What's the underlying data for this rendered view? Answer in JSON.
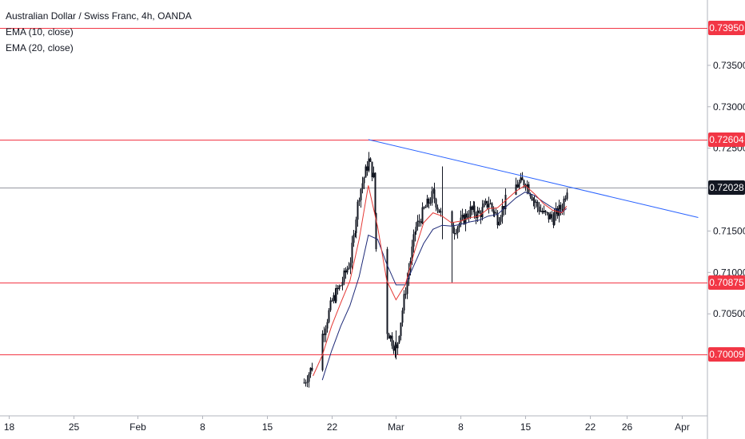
{
  "legend": {
    "title": "Australian Dollar / Swiss Franc, 4h, OANDA",
    "ema10": "EMA (10, close)",
    "ema20": "EMA (20, close)"
  },
  "colors": {
    "level_line": "#f23645",
    "trend_line": "#2962ff",
    "ema10": "#e53935",
    "ema20": "#1e2a78",
    "candle": "#131722",
    "current_tag": "#131722",
    "current_line": "#9598a1"
  },
  "chart_data": {
    "type": "candlestick",
    "ylim": [
      0.69625,
      0.74125
    ],
    "y_ticks": [
      "0.73500",
      "0.73000",
      "0.72500",
      "0.71500",
      "0.71000",
      "0.70500"
    ],
    "x_ticks": [
      "18",
      "25",
      "Feb",
      "8",
      "15",
      "22",
      "Mar",
      "8",
      "15",
      "22",
      "26",
      "Apr"
    ],
    "horizontal_levels": [
      {
        "label": "0.73950",
        "value": 0.7395
      },
      {
        "label": "0.72604",
        "value": 0.72604
      },
      {
        "label": "0.70875",
        "value": 0.70875
      },
      {
        "label": "0.70009",
        "value": 0.70009
      }
    ],
    "current_price": {
      "label": "0.72028",
      "value": 0.72028
    },
    "trendline": {
      "start": {
        "date": "2021-02-26",
        "value": 0.72604
      },
      "end": {
        "date": "2021-03-31",
        "value": 0.71649
      }
    },
    "close_path": [
      [
        "2021-02-19",
        0.6967
      ],
      [
        "2021-02-20",
        0.699
      ],
      [
        "2021-02-21",
        0.7025
      ],
      [
        "2021-02-22",
        0.7065
      ],
      [
        "2021-02-23",
        0.7085
      ],
      [
        "2021-02-24",
        0.7115
      ],
      [
        "2021-02-25",
        0.7195
      ],
      [
        "2021-02-26",
        0.7235
      ],
      [
        "2021-02-26T12",
        0.7215
      ],
      [
        "2021-02-27",
        0.7085
      ],
      [
        "2021-02-28",
        0.703
      ],
      [
        "2021-03-01",
        0.7005
      ],
      [
        "2021-03-02",
        0.708
      ],
      [
        "2021-03-03",
        0.715
      ],
      [
        "2021-03-04",
        0.7175
      ],
      [
        "2021-03-05",
        0.7195
      ],
      [
        "2021-03-06",
        0.7165
      ],
      [
        "2021-03-07",
        0.715
      ],
      [
        "2021-03-08",
        0.716
      ],
      [
        "2021-03-09",
        0.7175
      ],
      [
        "2021-03-10",
        0.717
      ],
      [
        "2021-03-11",
        0.7185
      ],
      [
        "2021-03-12",
        0.7165
      ],
      [
        "2021-03-13",
        0.719
      ],
      [
        "2021-03-14",
        0.7205
      ],
      [
        "2021-03-15",
        0.721
      ],
      [
        "2021-03-16",
        0.7185
      ],
      [
        "2021-03-17",
        0.717
      ],
      [
        "2021-03-18",
        0.7165
      ],
      [
        "2021-03-19",
        0.718
      ],
      [
        "2021-03-19T12",
        0.7203
      ]
    ],
    "ema10": [
      [
        "2021-02-20",
        0.6975
      ],
      [
        "2021-02-21",
        0.7
      ],
      [
        "2021-02-22",
        0.7035
      ],
      [
        "2021-02-23",
        0.7063
      ],
      [
        "2021-02-24",
        0.709
      ],
      [
        "2021-02-25",
        0.714
      ],
      [
        "2021-02-26",
        0.7205
      ],
      [
        "2021-02-27",
        0.7155
      ],
      [
        "2021-02-28",
        0.709
      ],
      [
        "2021-03-01",
        0.7067
      ],
      [
        "2021-03-02",
        0.7085
      ],
      [
        "2021-03-03",
        0.7125
      ],
      [
        "2021-03-04",
        0.716
      ],
      [
        "2021-03-05",
        0.7172
      ],
      [
        "2021-03-06",
        0.7168
      ],
      [
        "2021-03-07",
        0.716
      ],
      [
        "2021-03-08",
        0.7162
      ],
      [
        "2021-03-09",
        0.7166
      ],
      [
        "2021-03-10",
        0.7168
      ],
      [
        "2021-03-11",
        0.7177
      ],
      [
        "2021-03-12",
        0.7178
      ],
      [
        "2021-03-13",
        0.7188
      ],
      [
        "2021-03-14",
        0.7198
      ],
      [
        "2021-03-15",
        0.7205
      ],
      [
        "2021-03-16",
        0.7195
      ],
      [
        "2021-03-17",
        0.7183
      ],
      [
        "2021-03-18",
        0.7175
      ],
      [
        "2021-03-19",
        0.7172
      ],
      [
        "2021-03-19T12",
        0.718
      ]
    ],
    "ema20": [
      [
        "2021-02-21",
        0.697
      ],
      [
        "2021-02-22",
        0.7005
      ],
      [
        "2021-02-23",
        0.7035
      ],
      [
        "2021-02-24",
        0.706
      ],
      [
        "2021-02-25",
        0.7095
      ],
      [
        "2021-02-26",
        0.7145
      ],
      [
        "2021-02-27",
        0.714
      ],
      [
        "2021-02-28",
        0.711
      ],
      [
        "2021-03-01",
        0.7085
      ],
      [
        "2021-03-02",
        0.7085
      ],
      [
        "2021-03-03",
        0.711
      ],
      [
        "2021-03-04",
        0.7135
      ],
      [
        "2021-03-05",
        0.7152
      ],
      [
        "2021-03-06",
        0.7157
      ],
      [
        "2021-03-07",
        0.7156
      ],
      [
        "2021-03-08",
        0.7158
      ],
      [
        "2021-03-09",
        0.7161
      ],
      [
        "2021-03-10",
        0.7163
      ],
      [
        "2021-03-11",
        0.7168
      ],
      [
        "2021-03-12",
        0.717
      ],
      [
        "2021-03-13",
        0.718
      ],
      [
        "2021-03-14",
        0.719
      ],
      [
        "2021-03-15",
        0.7197
      ],
      [
        "2021-03-16",
        0.7193
      ],
      [
        "2021-03-17",
        0.7185
      ],
      [
        "2021-03-18",
        0.7178
      ],
      [
        "2021-03-19",
        0.7173
      ],
      [
        "2021-03-19T12",
        0.7177
      ]
    ]
  }
}
